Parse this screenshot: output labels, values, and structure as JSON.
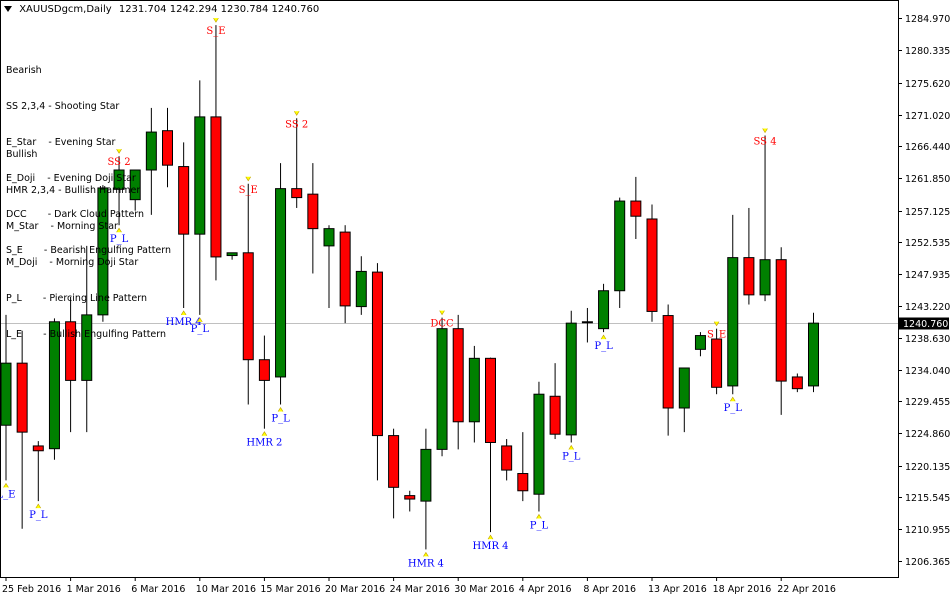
{
  "header": {
    "symbol": "XAUUSDgcm,Daily",
    "ohlc": "1231.704 1242.294 1230.784 1240.760"
  },
  "legend": {
    "bearish_title": "Bearish",
    "bearish_items": [
      "SS 2,3,4 - Shooting Star",
      "E_Star    - Evening Star",
      "E_Doji    - Evening Doji Star",
      "DCC       - Dark Cloud Pattern",
      "S_E       - Bearish Engulfing Pattern"
    ],
    "bullish_title": "Bullish",
    "bullish_items": [
      "HMR 2,3,4 - Bullish Hammer",
      "M_Star    - Morning Star",
      "M_Doji    - Morning Doji Star",
      "P_L       - Piercing Line Pattern",
      "L_E       - Bullish Engulfing Pattern"
    ]
  },
  "colors": {
    "bull": "#008000",
    "bear": "#ff0000",
    "wick": "#000000",
    "bull_label": "#0000ff",
    "bear_label": "#ff0000",
    "marker": "#ffff00",
    "current_line": "#c0c0c0",
    "price_box_bg": "#000000",
    "price_box_fg": "#ffffff"
  },
  "chart_data": {
    "type": "candlestick",
    "ylim": [
      1204.0,
      1287.5
    ],
    "yticks": [
      "1284.970",
      "1280.335",
      "1275.620",
      "1271.020",
      "1266.440",
      "1261.850",
      "1257.125",
      "1252.535",
      "1247.935",
      "1243.220",
      "1238.630",
      "1234.040",
      "1229.455",
      "1224.860",
      "1220.135",
      "1215.545",
      "1210.955",
      "1206.365"
    ],
    "current_price": "1240.760",
    "xticks": [
      {
        "i": 0,
        "label": "25 Feb 2016"
      },
      {
        "i": 4,
        "label": "1 Mar 2016"
      },
      {
        "i": 8,
        "label": "6 Mar 2016"
      },
      {
        "i": 12,
        "label": "10 Mar 2016"
      },
      {
        "i": 16,
        "label": "15 Mar 2016"
      },
      {
        "i": 20,
        "label": "20 Mar 2016"
      },
      {
        "i": 24,
        "label": "24 Mar 2016"
      },
      {
        "i": 28,
        "label": "30 Mar 2016"
      },
      {
        "i": 32,
        "label": "4 Apr 2016"
      },
      {
        "i": 36,
        "label": "8 Apr 2016"
      },
      {
        "i": 40,
        "label": "13 Apr 2016"
      },
      {
        "i": 44,
        "label": "18 Apr 2016"
      },
      {
        "i": 48,
        "label": "22 Apr 2016"
      }
    ],
    "candles": [
      {
        "o": 1226.0,
        "h": 1242.0,
        "l": 1218.0,
        "c": 1235.0
      },
      {
        "o": 1235.0,
        "h": 1239.7,
        "l": 1211.0,
        "c": 1225.0
      },
      {
        "o": 1223.0,
        "h": 1223.7,
        "l": 1215.0,
        "c": 1222.3
      },
      {
        "o": 1222.6,
        "h": 1241.5,
        "l": 1221.0,
        "c": 1241.0
      },
      {
        "o": 1241.0,
        "h": 1244.6,
        "l": 1225.0,
        "c": 1232.5
      },
      {
        "o": 1232.5,
        "h": 1252.0,
        "l": 1225.0,
        "c": 1242.0
      },
      {
        "o": 1242.0,
        "h": 1260.8,
        "l": 1241.0,
        "c": 1260.4
      },
      {
        "o": 1260.2,
        "h": 1265.0,
        "l": 1255.0,
        "c": 1263.0
      },
      {
        "o": 1258.7,
        "h": 1263.0,
        "l": 1257.1,
        "c": 1263.0
      },
      {
        "o": 1263.0,
        "h": 1272.0,
        "l": 1256.5,
        "c": 1268.5
      },
      {
        "o": 1268.7,
        "h": 1272.0,
        "l": 1260.5,
        "c": 1263.7
      },
      {
        "o": 1263.5,
        "h": 1267.0,
        "l": 1243.0,
        "c": 1253.7
      },
      {
        "o": 1253.7,
        "h": 1276.0,
        "l": 1242.0,
        "c": 1270.7
      },
      {
        "o": 1270.7,
        "h": 1284.0,
        "l": 1247.0,
        "c": 1250.4
      },
      {
        "o": 1250.6,
        "h": 1251.0,
        "l": 1250.0,
        "c": 1251.0
      },
      {
        "o": 1251.0,
        "h": 1261.0,
        "l": 1229.0,
        "c": 1235.5
      },
      {
        "o": 1235.5,
        "h": 1239.0,
        "l": 1225.5,
        "c": 1232.5
      },
      {
        "o": 1233.0,
        "h": 1264.0,
        "l": 1229.0,
        "c": 1260.3
      },
      {
        "o": 1260.3,
        "h": 1270.5,
        "l": 1257.5,
        "c": 1259.0
      },
      {
        "o": 1259.5,
        "h": 1264.0,
        "l": 1248.0,
        "c": 1254.5
      },
      {
        "o": 1252.0,
        "h": 1255.0,
        "l": 1243.0,
        "c": 1254.5
      },
      {
        "o": 1254.0,
        "h": 1255.0,
        "l": 1240.8,
        "c": 1243.3
      },
      {
        "o": 1243.2,
        "h": 1250.5,
        "l": 1242.0,
        "c": 1248.3
      },
      {
        "o": 1248.2,
        "h": 1249.5,
        "l": 1218.0,
        "c": 1224.5
      },
      {
        "o": 1224.5,
        "h": 1225.5,
        "l": 1212.5,
        "c": 1217.0
      },
      {
        "o": 1215.8,
        "h": 1216.5,
        "l": 1213.5,
        "c": 1215.3
      },
      {
        "o": 1215.0,
        "h": 1225.5,
        "l": 1208.0,
        "c": 1222.5
      },
      {
        "o": 1222.5,
        "h": 1241.6,
        "l": 1221.5,
        "c": 1240.0
      },
      {
        "o": 1240.0,
        "h": 1242.0,
        "l": 1222.5,
        "c": 1226.5
      },
      {
        "o": 1226.5,
        "h": 1237.5,
        "l": 1223.5,
        "c": 1235.7
      },
      {
        "o": 1235.7,
        "h": 1235.8,
        "l": 1210.5,
        "c": 1223.5
      },
      {
        "o": 1223.0,
        "h": 1224.0,
        "l": 1218.0,
        "c": 1219.5
      },
      {
        "o": 1219.0,
        "h": 1225.0,
        "l": 1215.0,
        "c": 1216.5
      },
      {
        "o": 1216.0,
        "h": 1232.3,
        "l": 1213.5,
        "c": 1230.5
      },
      {
        "o": 1230.2,
        "h": 1235.0,
        "l": 1224.0,
        "c": 1224.7
      },
      {
        "o": 1224.6,
        "h": 1242.6,
        "l": 1223.5,
        "c": 1240.8
      },
      {
        "o": 1241.0,
        "h": 1243.0,
        "l": 1238.0,
        "c": 1241.0
      },
      {
        "o": 1240.0,
        "h": 1246.5,
        "l": 1239.5,
        "c": 1245.5
      },
      {
        "o": 1245.5,
        "h": 1259.0,
        "l": 1243.0,
        "c": 1258.5
      },
      {
        "o": 1258.5,
        "h": 1262.0,
        "l": 1253.0,
        "c": 1256.3
      },
      {
        "o": 1255.9,
        "h": 1258.0,
        "l": 1241.0,
        "c": 1242.5
      },
      {
        "o": 1241.9,
        "h": 1243.5,
        "l": 1224.5,
        "c": 1228.5
      },
      {
        "o": 1228.5,
        "h": 1234.3,
        "l": 1225.0,
        "c": 1234.3
      },
      {
        "o": 1237.0,
        "h": 1239.5,
        "l": 1236.0,
        "c": 1239.0
      },
      {
        "o": 1238.5,
        "h": 1240.0,
        "l": 1230.5,
        "c": 1231.5
      },
      {
        "o": 1231.7,
        "h": 1256.5,
        "l": 1230.5,
        "c": 1250.3
      },
      {
        "o": 1250.3,
        "h": 1257.5,
        "l": 1243.5,
        "c": 1244.9
      },
      {
        "o": 1244.9,
        "h": 1268.0,
        "l": 1244.0,
        "c": 1250.0
      },
      {
        "o": 1250.0,
        "h": 1251.8,
        "l": 1227.5,
        "c": 1232.4
      },
      {
        "o": 1233.0,
        "h": 1233.5,
        "l": 1230.8,
        "c": 1231.3
      },
      {
        "o": 1231.7,
        "h": 1242.3,
        "l": 1230.8,
        "c": 1240.8
      }
    ],
    "annotations": [
      {
        "i": 0,
        "text": "L_E",
        "type": "bull"
      },
      {
        "i": 2,
        "text": "P_L",
        "type": "bull"
      },
      {
        "i": 7,
        "text": "P_L",
        "type": "bull"
      },
      {
        "i": 7,
        "text": "SS 2",
        "type": "bear"
      },
      {
        "i": 11,
        "text": "HMR 4",
        "type": "bull"
      },
      {
        "i": 12,
        "text": "P_L",
        "type": "bull"
      },
      {
        "i": 13,
        "text": "S_E",
        "type": "bear"
      },
      {
        "i": 15,
        "text": "S_E",
        "type": "bear"
      },
      {
        "i": 16,
        "text": "HMR 2",
        "type": "bull"
      },
      {
        "i": 17,
        "text": "P_L",
        "type": "bull"
      },
      {
        "i": 18,
        "text": "SS 2",
        "type": "bear"
      },
      {
        "i": 27,
        "text": "DCC",
        "type": "bear"
      },
      {
        "i": 26,
        "text": "HMR 4",
        "type": "bull"
      },
      {
        "i": 30,
        "text": "HMR 4",
        "type": "bull"
      },
      {
        "i": 33,
        "text": "P_L",
        "type": "bull"
      },
      {
        "i": 35,
        "text": "P_L",
        "type": "bull"
      },
      {
        "i": 37,
        "text": "P_L",
        "type": "bull"
      },
      {
        "i": 44,
        "text": "S_E",
        "type": "bear"
      },
      {
        "i": 45,
        "text": "P_L",
        "type": "bull"
      },
      {
        "i": 47,
        "text": "SS 4",
        "type": "bear"
      }
    ]
  }
}
